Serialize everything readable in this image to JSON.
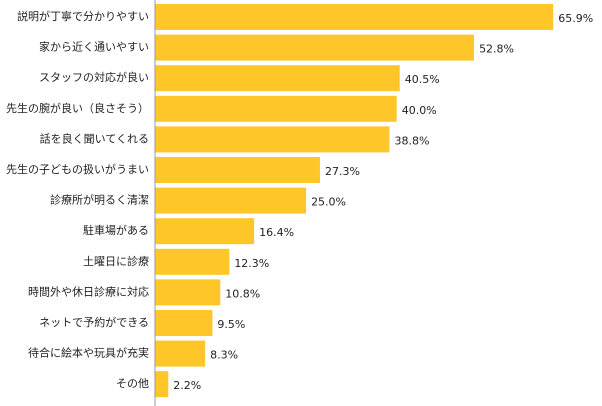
{
  "chart_data": {
    "type": "bar",
    "orientation": "horizontal",
    "categories": [
      "説明が丁寧で分かりやすい",
      "家から近く通いやすい",
      "スタッフの対応が良い",
      "先生の腕が良い（良さそう）",
      "話を良く聞いてくれる",
      "先生の子どもの扱いがうまい",
      "診療所が明るく清潔",
      "駐車場がある",
      "土曜日に診療",
      "時間外や休日診療に対応",
      "ネットで予約ができる",
      "待合に絵本や玩具が充実",
      "その他"
    ],
    "values": [
      65.9,
      52.8,
      40.5,
      40.0,
      38.8,
      27.3,
      25.0,
      16.4,
      12.3,
      10.8,
      9.5,
      8.3,
      2.2
    ],
    "value_labels": [
      "65.9%",
      "52.8%",
      "40.5%",
      "40.0%",
      "38.8%",
      "27.3%",
      "25.0%",
      "16.4%",
      "12.3%",
      "10.8%",
      "9.5%",
      "8.3%",
      "2.2%"
    ],
    "xlim": [
      0,
      70
    ],
    "bar_color": "#ffc629",
    "axis_color": "#999999",
    "grid": false,
    "title": "",
    "xlabel": "",
    "ylabel": ""
  }
}
